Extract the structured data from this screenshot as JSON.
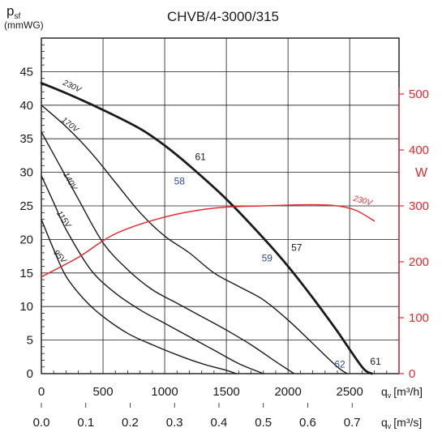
{
  "title": "CHVB/4-3000/315",
  "y_axis": {
    "label_main": "p",
    "label_sub": "sf",
    "label_unit": "(mmWG)",
    "ticks": [
      "0",
      "5",
      "10",
      "15",
      "20",
      "25",
      "30",
      "35",
      "40",
      "45"
    ]
  },
  "x_axis_flow_m3h": {
    "label_q": "q",
    "label_sub": "v",
    "label_unit": "[m³/h]",
    "ticks": [
      "0",
      "500",
      "1000",
      "1500",
      "2000",
      "2500"
    ]
  },
  "x_axis_flow_m3s": {
    "label_q": "q",
    "label_sub": "v",
    "label_unit": "[m³/s]",
    "ticks": [
      "0.0",
      "0.1",
      "0.2",
      "0.3",
      "0.4",
      "0.5",
      "0.6",
      "0.7"
    ]
  },
  "power_axis": {
    "label": "W",
    "ticks": [
      "0",
      "100",
      "200",
      "300",
      "400",
      "500"
    ]
  },
  "colors": {
    "black": "#1a1a1a",
    "red": "#e8262c",
    "blue": "#2e4a9a",
    "grid": "#1a1a1a"
  },
  "chart_data": {
    "type": "line",
    "title": "CHVB/4-3000/315",
    "xlabel": "qv [m³/h]",
    "xlabel_secondary": "qv [m³/s]",
    "ylabel": "psf (mmWG)",
    "ylabel_right": "W",
    "xlim": [
      0,
      2900
    ],
    "ylim": [
      0,
      50
    ],
    "y2lim": [
      0,
      600
    ],
    "series": [
      {
        "name": "230V",
        "axis": "left",
        "style": "bold",
        "x": [
          0,
          200,
          500,
          800,
          1000,
          1200,
          1500,
          1800,
          2000,
          2200,
          2400,
          2600,
          2680
        ],
        "y": [
          43.3,
          41.8,
          39.3,
          36.5,
          34.0,
          31.0,
          26.0,
          20.2,
          16.0,
          11.3,
          6.3,
          1.0,
          0
        ]
      },
      {
        "name": "170V",
        "axis": "left",
        "x": [
          0,
          200,
          400,
          600,
          800,
          1000,
          1200,
          1400,
          1600,
          1800,
          2000,
          2200,
          2400,
          2480
        ],
        "y": [
          40.0,
          36.8,
          33.0,
          28.5,
          24.0,
          20.5,
          18.0,
          15.0,
          13.0,
          11.0,
          8.0,
          4.5,
          1.0,
          0
        ]
      },
      {
        "name": "140V",
        "axis": "left",
        "x": [
          0,
          150,
          300,
          500,
          700,
          900,
          1100,
          1300,
          1500,
          1700,
          1900,
          2050
        ],
        "y": [
          36.0,
          31.0,
          26.0,
          19.5,
          15.5,
          12.5,
          10.5,
          8.5,
          6.5,
          4.3,
          1.8,
          0
        ]
      },
      {
        "name": "115V",
        "axis": "left",
        "x": [
          0,
          100,
          200,
          400,
          600,
          800,
          1000,
          1200,
          1400,
          1600,
          1800
        ],
        "y": [
          29.5,
          25.5,
          21.5,
          15.5,
          12.0,
          9.5,
          7.5,
          5.5,
          3.5,
          1.5,
          0
        ]
      },
      {
        "name": "95V",
        "axis": "left",
        "x": [
          0,
          100,
          200,
          350,
          500,
          700,
          900,
          1100,
          1300,
          1500,
          1580
        ],
        "y": [
          23.0,
          18.5,
          14.5,
          11.0,
          8.5,
          6.0,
          4.3,
          2.8,
          1.5,
          0.5,
          0
        ]
      },
      {
        "name": "230V",
        "axis": "right",
        "color": "red",
        "x": [
          0,
          300,
          600,
          1000,
          1400,
          1800,
          2200,
          2400,
          2550,
          2700
        ],
        "y": [
          173,
          208,
          250,
          280,
          296,
          300,
          302,
          300,
          292,
          273
        ]
      }
    ],
    "curve_labels": [
      {
        "text": "230V",
        "x": 240,
        "y": 42.5,
        "rotate": 25
      },
      {
        "text": "170V",
        "x": 220,
        "y": 36.8,
        "rotate": 38
      },
      {
        "text": "140V",
        "x": 215,
        "y": 28.5,
        "rotate": 60
      },
      {
        "text": "115V",
        "x": 165,
        "y": 22.8,
        "rotate": 55
      },
      {
        "text": "95V",
        "x": 135,
        "y": 17.2,
        "rotate": 48
      },
      {
        "text": "230V",
        "x": 2600,
        "y2": 305,
        "rotate": 15,
        "color": "red"
      }
    ],
    "efficiency_labels": [
      {
        "text": "61",
        "x": 1290,
        "y": 32.3,
        "color": "black"
      },
      {
        "text": "58",
        "x": 1120,
        "y": 28.7,
        "color": "blue"
      },
      {
        "text": "57",
        "x": 2070,
        "y": 18.8,
        "color": "black"
      },
      {
        "text": "59",
        "x": 1830,
        "y": 17.2,
        "color": "blue"
      },
      {
        "text": "62",
        "x": 2420,
        "y": 1.4,
        "color": "blue"
      },
      {
        "text": "61",
        "x": 2710,
        "y": 1.8,
        "color": "black"
      }
    ],
    "grid": true
  }
}
